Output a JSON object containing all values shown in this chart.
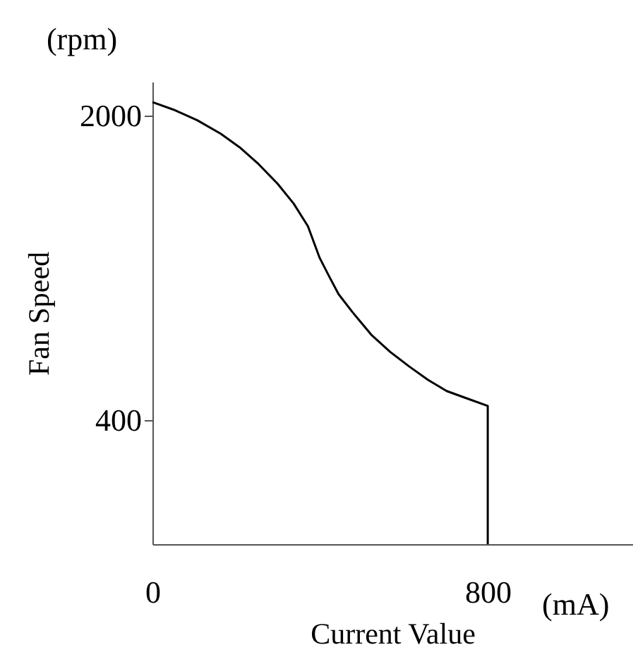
{
  "chart_data": {
    "type": "line",
    "xlabel": "Current Value",
    "ylabel": "Fan Speed",
    "x": [
      0,
      51,
      107,
      163,
      208,
      253,
      298,
      337,
      371,
      399,
      421,
      444,
      477,
      522,
      567,
      612,
      657,
      702,
      747,
      800,
      800
    ],
    "series": [
      {
        "color": "#000000",
        "values": [
          2071,
          2031,
          1976,
          1905,
          1834,
          1746,
          1644,
          1538,
          1419,
          1253,
          1159,
          1063,
          969,
          850,
          760,
          684,
          613,
          554,
          518,
          476,
          -250
        ]
      }
    ],
    "xlim": [
      0,
      1145
    ],
    "ylim": [
      -250,
      2178
    ],
    "xticks": [
      0,
      800
    ],
    "yticks": [
      400,
      2000
    ],
    "annotations": [
      "(rpm)",
      "(mA)"
    ],
    "grid": false,
    "marker": "none",
    "line_style": "solid"
  }
}
